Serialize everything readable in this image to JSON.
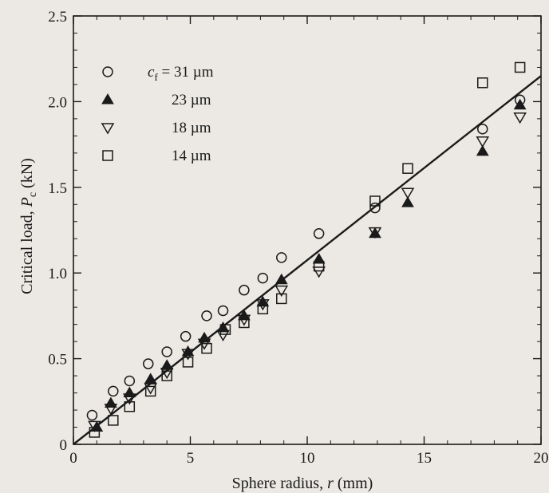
{
  "chart_data": {
    "type": "scatter",
    "xlabel": "Sphere radius, r (mm)",
    "ylabel": "Critical load, P_c (kN)",
    "xlim": [
      0,
      20
    ],
    "ylim": [
      0,
      2.5
    ],
    "x_ticks": [
      "0",
      "5",
      "10",
      "15",
      "20"
    ],
    "y_ticks": [
      "0",
      "0.5",
      "1.0",
      "1.5",
      "2.0",
      "2.5"
    ],
    "grid": false,
    "legend_position": "top-left",
    "legend_title_var": "c",
    "legend_title_sub": "f",
    "series": [
      {
        "name": "31 µm",
        "marker": "circle-open",
        "points": [
          [
            0.8,
            0.17
          ],
          [
            1.7,
            0.31
          ],
          [
            2.4,
            0.37
          ],
          [
            3.2,
            0.47
          ],
          [
            4.0,
            0.54
          ],
          [
            4.8,
            0.63
          ],
          [
            5.7,
            0.75
          ],
          [
            6.4,
            0.78
          ],
          [
            7.3,
            0.9
          ],
          [
            8.1,
            0.97
          ],
          [
            8.9,
            1.09
          ],
          [
            10.5,
            1.23
          ],
          [
            12.9,
            1.38
          ],
          [
            17.5,
            1.84
          ],
          [
            19.1,
            2.01
          ]
        ]
      },
      {
        "name": "23 µm",
        "marker": "triangle-up-filled",
        "points": [
          [
            1.0,
            0.1
          ],
          [
            1.6,
            0.24
          ],
          [
            2.4,
            0.3
          ],
          [
            3.3,
            0.38
          ],
          [
            4.0,
            0.46
          ],
          [
            4.9,
            0.54
          ],
          [
            5.6,
            0.62
          ],
          [
            6.4,
            0.68
          ],
          [
            7.3,
            0.75
          ],
          [
            8.1,
            0.83
          ],
          [
            8.9,
            0.96
          ],
          [
            10.5,
            1.08
          ],
          [
            12.9,
            1.23
          ],
          [
            14.3,
            1.41
          ],
          [
            17.5,
            1.71
          ],
          [
            19.1,
            1.98
          ]
        ]
      },
      {
        "name": "18 µm",
        "marker": "triangle-down-open",
        "points": [
          [
            0.9,
            0.11
          ],
          [
            1.6,
            0.21
          ],
          [
            2.4,
            0.27
          ],
          [
            3.3,
            0.33
          ],
          [
            4.0,
            0.42
          ],
          [
            4.9,
            0.53
          ],
          [
            5.6,
            0.59
          ],
          [
            6.4,
            0.64
          ],
          [
            7.3,
            0.73
          ],
          [
            8.1,
            0.82
          ],
          [
            8.9,
            0.9
          ],
          [
            10.5,
            1.01
          ],
          [
            12.9,
            1.24
          ],
          [
            14.3,
            1.47
          ],
          [
            17.5,
            1.77
          ],
          [
            19.1,
            1.91
          ]
        ]
      },
      {
        "name": "14 µm",
        "marker": "square-open",
        "points": [
          [
            0.9,
            0.07
          ],
          [
            1.7,
            0.14
          ],
          [
            2.4,
            0.22
          ],
          [
            3.3,
            0.31
          ],
          [
            4.0,
            0.4
          ],
          [
            4.9,
            0.48
          ],
          [
            5.7,
            0.56
          ],
          [
            6.5,
            0.67
          ],
          [
            7.3,
            0.71
          ],
          [
            8.1,
            0.79
          ],
          [
            8.9,
            0.85
          ],
          [
            10.5,
            1.04
          ],
          [
            12.9,
            1.42
          ],
          [
            14.3,
            1.61
          ],
          [
            17.5,
            2.11
          ],
          [
            19.1,
            2.2
          ]
        ]
      }
    ],
    "fit_line": {
      "x": [
        0,
        20
      ],
      "y": [
        0,
        2.15
      ]
    }
  }
}
